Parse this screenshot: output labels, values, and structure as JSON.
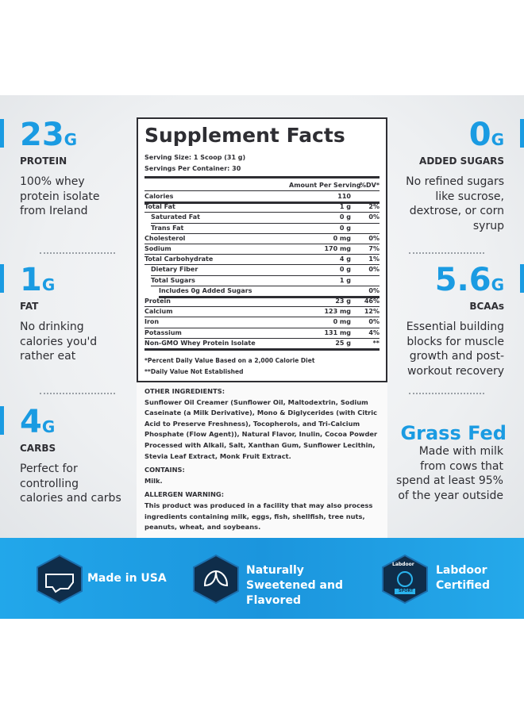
{
  "left": [
    {
      "value": "23",
      "unit": "G",
      "label": "PROTEIN",
      "text": "100% whey protein isolate from Ireland"
    },
    {
      "value": "1",
      "unit": "G",
      "label": "FAT",
      "text": "No drinking calories you'd rather eat"
    },
    {
      "value": "4",
      "unit": "G",
      "label": "CARBS",
      "text": "Perfect for controlling calories and carbs"
    }
  ],
  "right": [
    {
      "value": "0",
      "unit": "G",
      "label": "ADDED SUGARS",
      "text": "No refined sugars like sucrose, dextrose, or corn syrup"
    },
    {
      "value": "5.6",
      "unit": "G",
      "label": "BCAAs",
      "text": "Essential building blocks for muscle growth and post-workout recovery"
    }
  ],
  "grass_fed": {
    "title": "Grass Fed",
    "text": "Made with milk from cows that spend at least 95% of the year outside"
  },
  "facts": {
    "title": "Supplement Facts",
    "serving_size": "Serving Size: 1 Scoop (31 g)",
    "servings": "Servings Per Container: 30",
    "header": [
      "Amount Per Serving",
      "%DV*"
    ],
    "rows": [
      [
        "Calories",
        "110",
        null
      ],
      [
        "Total Fat",
        "1 g",
        "2%"
      ],
      [
        "Saturated Fat",
        "0 g",
        "0%"
      ],
      [
        "Trans Fat",
        "0 g",
        null
      ],
      [
        "Cholesterol",
        "0 mg",
        "0%"
      ],
      [
        "Sodium",
        "170 mg",
        "7%"
      ],
      [
        "Total Carbohydrate",
        "4 g",
        "1%"
      ],
      [
        "Dietary Fiber",
        "0 g",
        "0%"
      ],
      [
        "Total Sugars",
        "1 g",
        null
      ],
      [
        "Includes 0g Added Sugars",
        null,
        "0%"
      ],
      [
        "Protein",
        "23 g",
        "46%"
      ],
      [
        "Calcium",
        "123 mg",
        "12%"
      ],
      [
        "Iron",
        "0 mg",
        "0%"
      ],
      [
        "Potassium",
        "131 mg",
        "4%"
      ],
      [
        "Non-GMO Whey Protein Isolate",
        "25 g",
        "**"
      ]
    ],
    "footnotes": [
      "*Percent Daily Value Based on a 2,000 Calorie Diet",
      "**Daily Value Not Established"
    ]
  },
  "ingredients": {
    "other_title": "OTHER INGREDIENTS:",
    "other": "Sunflower Oil Creamer (Sunflower Oil, Maltodextrin, Sodium Caseinate (a Milk Derivative), Mono & Diglycerides (with Citric Acid to Preserve Freshness), Tocopherols, and Tri-Calcium Phosphate (Flow Agent)), Natural Flavor, Inulin, Cocoa Powder Processed with Alkali, Salt, Xanthan Gum, Sunflower Lecithin, Stevia Leaf Extract, Monk Fruit Extract.",
    "contains_title": "CONTAINS:",
    "contains": "Milk.",
    "allergen_title": "ALLERGEN WARNING:",
    "allergen": "This product was produced in a facility that may also process ingredients containing milk, eggs, fish, shellfish, tree nuts, peanuts, wheat, and soybeans."
  },
  "badges": [
    {
      "text": "Made in USA"
    },
    {
      "text": "Naturally Sweetened and Flavored"
    },
    {
      "text": "Labdoor Certified",
      "icon_text": "Labdoor",
      "icon_sub": "SPORT"
    }
  ]
}
